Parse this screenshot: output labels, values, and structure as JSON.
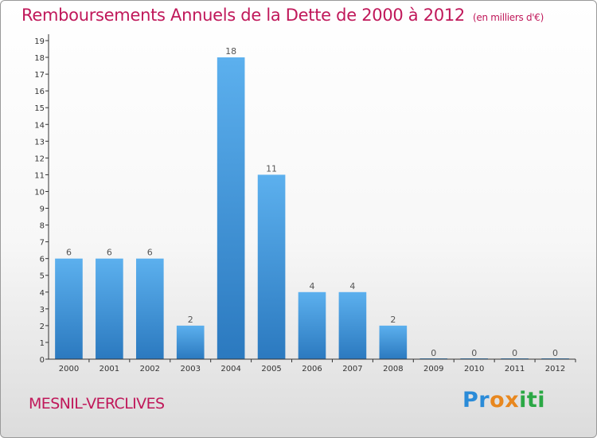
{
  "page": {
    "title": "Remboursements Annuels de la Dette de 2000 à 2012",
    "subtitle": "(en milliers d'€)",
    "commune": "MESNIL-VERCLIVES",
    "logo": {
      "letters": [
        "P",
        "r",
        "o",
        "x",
        "i",
        "t",
        "i"
      ],
      "colors": [
        "#2a8bd8",
        "#2a8bd8",
        "#e8871e",
        "#e8871e",
        "#2ba845",
        "#2ba845",
        "#2ba845"
      ]
    }
  },
  "chart_data": {
    "type": "bar",
    "title": "Remboursements Annuels de la Dette de 2000 à 2012",
    "subtitle": "(en milliers d'€)",
    "categories": [
      "2000",
      "2001",
      "2002",
      "2003",
      "2004",
      "2005",
      "2006",
      "2007",
      "2008",
      "2009",
      "2010",
      "2011",
      "2012"
    ],
    "values": [
      6,
      6,
      6,
      2,
      18,
      11,
      4,
      4,
      2,
      0,
      0,
      0,
      0
    ],
    "ylim": [
      0,
      19
    ],
    "yticks": [
      0,
      1,
      2,
      3,
      4,
      5,
      6,
      7,
      8,
      9,
      10,
      11,
      12,
      13,
      14,
      15,
      16,
      17,
      18,
      19
    ],
    "bar_color": "#3b8fd6",
    "bar_color_light": "#5cb0ee",
    "axis_color": "#333333",
    "data_labels": true,
    "grid": false
  }
}
